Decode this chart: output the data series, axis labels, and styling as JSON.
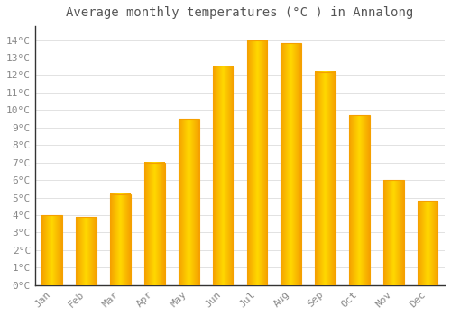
{
  "title": "Average monthly temperatures (°C ) in Annalong",
  "months": [
    "Jan",
    "Feb",
    "Mar",
    "Apr",
    "May",
    "Jun",
    "Jul",
    "Aug",
    "Sep",
    "Oct",
    "Nov",
    "Dec"
  ],
  "values": [
    4.0,
    3.9,
    5.2,
    7.0,
    9.5,
    12.5,
    14.0,
    13.8,
    12.2,
    9.7,
    6.0,
    4.8
  ],
  "bar_color_center": "#FFD000",
  "bar_color_edge": "#F5A000",
  "background_color": "#FFFFFF",
  "plot_bg_color": "#FFFFFF",
  "grid_color": "#DDDDDD",
  "ytick_labels": [
    "0°C",
    "1°C",
    "2°C",
    "3°C",
    "4°C",
    "5°C",
    "6°C",
    "7°C",
    "8°C",
    "9°C",
    "10°C",
    "11°C",
    "12°C",
    "13°C",
    "14°C"
  ],
  "ytick_values": [
    0,
    1,
    2,
    3,
    4,
    5,
    6,
    7,
    8,
    9,
    10,
    11,
    12,
    13,
    14
  ],
  "ylim": [
    0,
    14.8
  ],
  "title_fontsize": 10,
  "tick_fontsize": 8,
  "font_family": "monospace",
  "tick_color": "#888888",
  "title_color": "#555555",
  "bar_width": 0.6,
  "spine_color": "#333333"
}
